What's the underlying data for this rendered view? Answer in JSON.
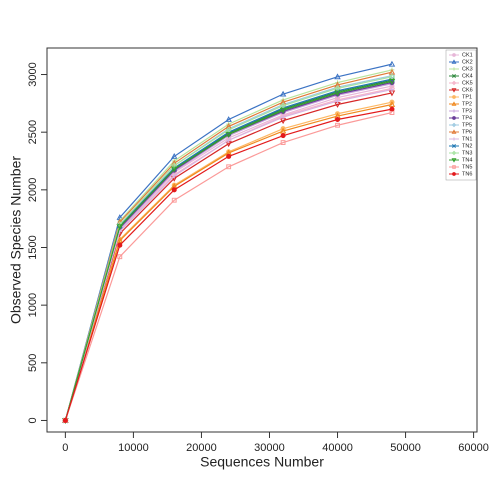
{
  "chart_data": {
    "type": "line",
    "x_label": "Sequences Number",
    "y_label": "Observed Species Number",
    "x": [
      0,
      8000,
      16000,
      24000,
      32000,
      40000,
      48000
    ],
    "xlim": [
      -2700,
      60500
    ],
    "xticks": [
      0,
      10000,
      20000,
      30000,
      40000,
      50000,
      60000
    ],
    "ylim": [
      -100,
      3230
    ],
    "yticks": [
      0,
      500,
      1000,
      1500,
      2000,
      2500,
      3000
    ],
    "legend": "top-right",
    "series": [
      {
        "name": "CK1",
        "color": "#e7b7d8",
        "marker": "circle",
        "values": [
          0,
          1650,
          2150,
          2450,
          2650,
          2800,
          2900
        ]
      },
      {
        "name": "CK2",
        "color": "#3b73c4",
        "marker": "triangle",
        "values": [
          0,
          1760,
          2290,
          2610,
          2830,
          2980,
          3090
        ]
      },
      {
        "name": "CK3",
        "color": "#b8e39c",
        "marker": "plus",
        "values": [
          0,
          1730,
          2250,
          2570,
          2780,
          2930,
          3040
        ]
      },
      {
        "name": "CK4",
        "color": "#2f8a3e",
        "marker": "x",
        "values": [
          0,
          1680,
          2180,
          2490,
          2700,
          2850,
          2950
        ]
      },
      {
        "name": "CK5",
        "color": "#f5b3c9",
        "marker": "diamond",
        "values": [
          0,
          1640,
          2130,
          2430,
          2640,
          2780,
          2880
        ]
      },
      {
        "name": "CK6",
        "color": "#d62728",
        "marker": "triangle-down",
        "values": [
          0,
          1620,
          2100,
          2400,
          2600,
          2740,
          2840
        ]
      },
      {
        "name": "TP1",
        "color": "#fdb863",
        "marker": "circle",
        "values": [
          0,
          1570,
          2040,
          2330,
          2530,
          2660,
          2760
        ]
      },
      {
        "name": "TP2",
        "color": "#f0891f",
        "marker": "triangle",
        "values": [
          0,
          1560,
          2030,
          2320,
          2510,
          2640,
          2740
        ]
      },
      {
        "name": "TP3",
        "color": "#c9a3dc",
        "marker": "plus",
        "values": [
          0,
          1660,
          2160,
          2470,
          2670,
          2820,
          2920
        ]
      },
      {
        "name": "TP4",
        "color": "#6a3d9a",
        "marker": "circle",
        "values": [
          0,
          1670,
          2170,
          2480,
          2680,
          2830,
          2930
        ]
      },
      {
        "name": "TP5",
        "color": "#9ecae1",
        "marker": "diamond",
        "values": [
          0,
          1700,
          2210,
          2530,
          2740,
          2890,
          2990
        ]
      },
      {
        "name": "TP6",
        "color": "#e07b39",
        "marker": "triangle",
        "values": [
          0,
          1720,
          2230,
          2550,
          2760,
          2910,
          3020
        ]
      },
      {
        "name": "TN1",
        "color": "#d8b4e2",
        "marker": "plus",
        "values": [
          0,
          1640,
          2120,
          2430,
          2630,
          2770,
          2870
        ]
      },
      {
        "name": "TN2",
        "color": "#1f78b4",
        "marker": "x",
        "values": [
          0,
          1690,
          2190,
          2500,
          2710,
          2860,
          2960
        ]
      },
      {
        "name": "TN3",
        "color": "#a6e3a1",
        "marker": "diamond",
        "values": [
          0,
          1700,
          2210,
          2520,
          2730,
          2880,
          2980
        ]
      },
      {
        "name": "TN4",
        "color": "#33a02c",
        "marker": "triangle-down",
        "values": [
          0,
          1680,
          2180,
          2480,
          2690,
          2840,
          2940
        ]
      },
      {
        "name": "TN5",
        "color": "#fb9a99",
        "marker": "square",
        "values": [
          0,
          1420,
          1910,
          2200,
          2410,
          2560,
          2670
        ]
      },
      {
        "name": "TN6",
        "color": "#e31a1c",
        "marker": "circle",
        "values": [
          0,
          1520,
          2000,
          2290,
          2470,
          2610,
          2700
        ]
      }
    ]
  }
}
